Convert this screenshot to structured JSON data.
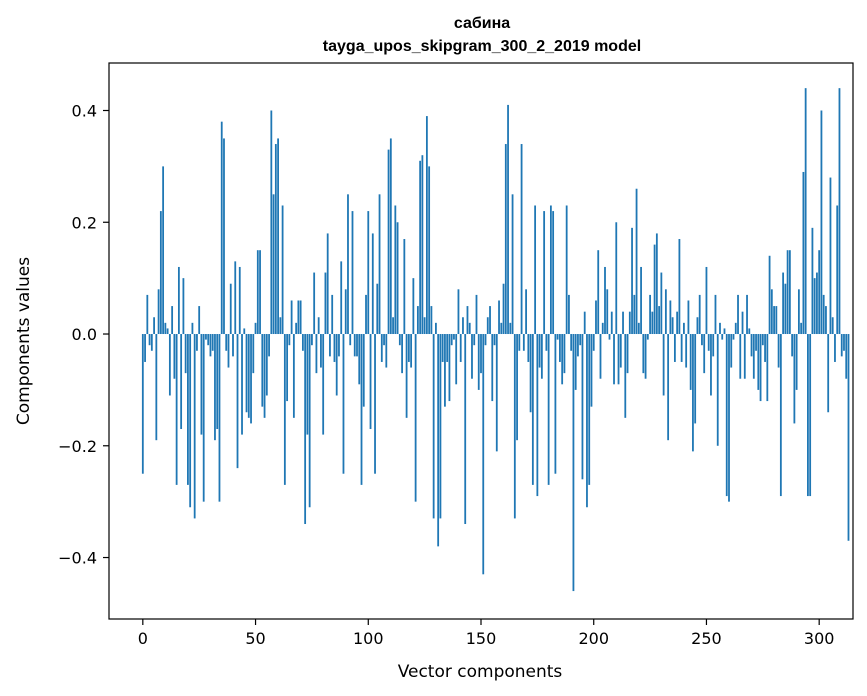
{
  "chart_data": {
    "type": "bar",
    "title": "сабина",
    "subtitle": "tayga_upos_skipgram_300_2_2019 model",
    "xlabel": "Vector components",
    "ylabel": "Components values",
    "xlim": [
      -15,
      315
    ],
    "ylim": [
      -0.51,
      0.485
    ],
    "xticks": [
      0,
      50,
      100,
      150,
      200,
      250,
      300
    ],
    "xtick_labels": [
      "0",
      "50",
      "100",
      "150",
      "200",
      "250",
      "300"
    ],
    "yticks": [
      -0.4,
      -0.2,
      0.0,
      0.2,
      0.4
    ],
    "ytick_labels": [
      "−0.4",
      "−0.2",
      "0.0",
      "0.2",
      "0.4"
    ],
    "bar_color": "#1f77b4",
    "grid": false,
    "values": [
      -0.25,
      -0.05,
      0.07,
      -0.02,
      -0.03,
      0.03,
      -0.19,
      0.08,
      0.22,
      0.3,
      0.02,
      0.01,
      -0.11,
      0.05,
      -0.08,
      -0.27,
      0.12,
      -0.17,
      0.1,
      -0.07,
      -0.27,
      -0.31,
      0.02,
      -0.33,
      -0.03,
      0.05,
      -0.18,
      -0.3,
      -0.01,
      -0.02,
      -0.04,
      -0.03,
      -0.19,
      -0.17,
      -0.3,
      0.38,
      0.35,
      -0.03,
      -0.06,
      0.09,
      -0.04,
      0.13,
      -0.24,
      0.12,
      -0.18,
      0.01,
      -0.14,
      -0.15,
      -0.16,
      -0.07,
      0.02,
      0.15,
      0.15,
      -0.13,
      -0.15,
      -0.11,
      -0.04,
      0.4,
      0.25,
      0.34,
      0.35,
      0.03,
      0.23,
      -0.27,
      -0.12,
      -0.02,
      0.06,
      -0.15,
      0.02,
      0.06,
      0.06,
      -0.03,
      -0.34,
      -0.18,
      -0.31,
      -0.02,
      0.11,
      -0.07,
      0.03,
      -0.06,
      -0.18,
      0.11,
      0.18,
      -0.04,
      0.07,
      -0.05,
      -0.11,
      -0.04,
      0.13,
      -0.25,
      0.08,
      0.25,
      -0.02,
      0.22,
      -0.04,
      -0.04,
      -0.09,
      -0.27,
      -0.13,
      0.07,
      0.22,
      -0.17,
      0.18,
      -0.25,
      0.09,
      0.25,
      -0.05,
      -0.02,
      -0.06,
      0.33,
      0.35,
      0.03,
      0.23,
      0.2,
      -0.02,
      -0.07,
      0.17,
      -0.15,
      -0.05,
      -0.06,
      0.1,
      -0.3,
      0.05,
      0.31,
      0.32,
      0.03,
      0.39,
      0.3,
      0.05,
      -0.33,
      0.02,
      -0.38,
      -0.33,
      -0.05,
      -0.13,
      -0.05,
      -0.12,
      -0.02,
      -0.01,
      -0.09,
      0.08,
      -0.05,
      0.03,
      -0.34,
      0.05,
      0.02,
      -0.08,
      -0.02,
      0.07,
      -0.1,
      -0.07,
      -0.43,
      -0.02,
      0.03,
      0.05,
      -0.12,
      -0.02,
      -0.21,
      0.06,
      0.02,
      0.09,
      0.34,
      0.41,
      0.02,
      0.25,
      -0.33,
      -0.19,
      -0.03,
      0.34,
      -0.03,
      0.08,
      -0.05,
      -0.14,
      -0.27,
      0.23,
      -0.29,
      -0.06,
      -0.08,
      0.22,
      -0.03,
      -0.27,
      0.23,
      0.22,
      -0.25,
      -0.01,
      -0.05,
      -0.09,
      -0.07,
      0.23,
      0.07,
      -0.03,
      -0.46,
      -0.1,
      -0.04,
      -0.02,
      -0.26,
      0.04,
      -0.31,
      -0.27,
      -0.13,
      -0.03,
      0.06,
      0.15,
      -0.08,
      0.02,
      0.12,
      0.08,
      -0.01,
      0.04,
      -0.09,
      0.2,
      -0.09,
      -0.06,
      0.04,
      -0.15,
      -0.07,
      0.04,
      0.19,
      0.07,
      0.26,
      0.02,
      0.12,
      -0.07,
      -0.08,
      -0.01,
      0.07,
      0.04,
      0.16,
      0.18,
      0.05,
      0.11,
      -0.11,
      0.08,
      -0.19,
      0.06,
      0.03,
      -0.05,
      0.04,
      0.17,
      -0.05,
      0.02,
      -0.06,
      0.06,
      -0.1,
      -0.21,
      -0.16,
      0.03,
      0.07,
      -0.02,
      -0.07,
      0.12,
      -0.03,
      -0.11,
      -0.04,
      0.07,
      -0.2,
      0.02,
      -0.01,
      0.01,
      -0.29,
      -0.3,
      -0.06,
      -0.01,
      0.02,
      0.07,
      -0.08,
      0.04,
      -0.08,
      0.07,
      0.01,
      -0.04,
      -0.08,
      -0.03,
      -0.1,
      -0.12,
      -0.02,
      -0.05,
      -0.12,
      0.14,
      0.08,
      0.05,
      0.05,
      -0.06,
      -0.29,
      0.11,
      0.09,
      0.15,
      0.15,
      -0.04,
      -0.16,
      -0.1,
      0.08,
      0.02,
      0.29,
      0.44,
      -0.29,
      -0.29,
      0.19,
      0.1,
      0.11,
      0.15,
      0.4,
      0.07,
      0.05,
      -0.14,
      0.28,
      0.03,
      -0.05,
      0.23,
      0.44,
      -0.04,
      -0.03,
      -0.08,
      -0.37
    ]
  }
}
